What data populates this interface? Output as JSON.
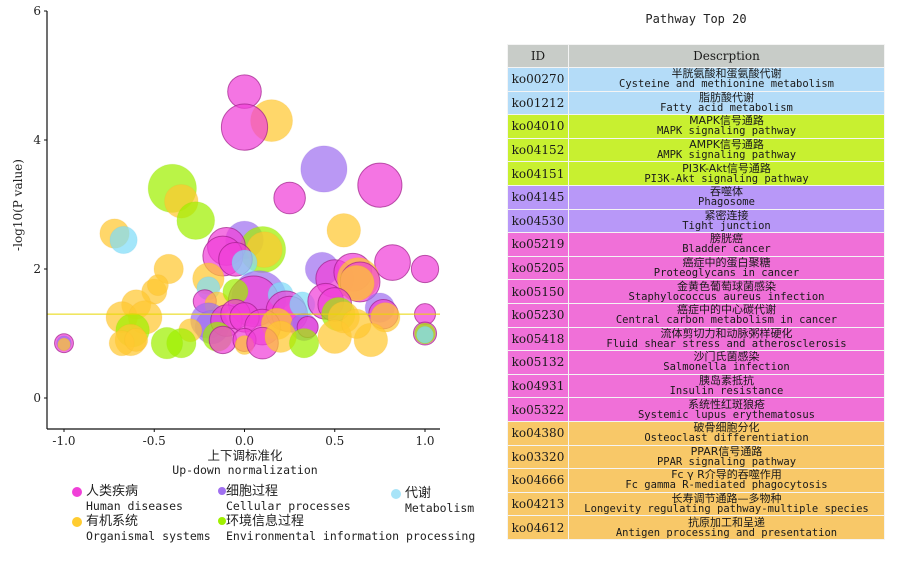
{
  "chart_data": {
    "type": "scatter",
    "subtype": "bubble",
    "xlabel_zh": "上下调标准化",
    "xlabel_en": "Up-down normalization",
    "ylabel": "-log10(P value)",
    "xlim": [
      -1.1,
      1.1
    ],
    "ylim": [
      -0.45,
      6
    ],
    "xticks": [
      "-1.0",
      "-0.5",
      "0.0",
      "0.5",
      "1.0"
    ],
    "xtick_values": [
      -1.0,
      -0.5,
      0.0,
      0.5,
      1.0
    ],
    "yticks": [
      "0",
      "2",
      "4",
      "6"
    ],
    "ytick_values": [
      0,
      2,
      4,
      6
    ],
    "threshold_line": 1.3,
    "grid": false,
    "legend_position": "bottom",
    "categories": [
      {
        "key": "human",
        "zh": "人类疾病",
        "en": "Human diseases",
        "color": "#f040d8"
      },
      {
        "key": "cellular",
        "zh": "细胞过程",
        "en": "Cellular processes",
        "color": "#a070f0"
      },
      {
        "key": "metabolism",
        "zh": "代谢",
        "en": "Metabolism",
        "color": "#80dcf8"
      },
      {
        "key": "organismal",
        "zh": "有机系统",
        "en": "Organismal systems",
        "color": "#ffc830"
      },
      {
        "key": "environmental",
        "zh": "环境信息过程",
        "en": "Environmental information processing",
        "color": "#a0f000"
      }
    ],
    "points": [
      {
        "x": 0.0,
        "y": 4.75,
        "size": 0.8,
        "cat": "human"
      },
      {
        "x": 0.15,
        "y": 4.3,
        "size": 1.0,
        "cat": "organismal"
      },
      {
        "x": 0.0,
        "y": 4.2,
        "size": 1.1,
        "cat": "human"
      },
      {
        "x": 0.44,
        "y": 3.55,
        "size": 1.1,
        "cat": "cellular"
      },
      {
        "x": 0.75,
        "y": 3.3,
        "size": 1.05,
        "cat": "human"
      },
      {
        "x": 0.25,
        "y": 3.1,
        "size": 0.75,
        "cat": "human"
      },
      {
        "x": -0.4,
        "y": 3.25,
        "size": 1.15,
        "cat": "environmental"
      },
      {
        "x": -0.35,
        "y": 3.05,
        "size": 0.8,
        "cat": "organismal"
      },
      {
        "x": -0.27,
        "y": 2.75,
        "size": 0.9,
        "cat": "environmental"
      },
      {
        "x": -0.72,
        "y": 2.55,
        "size": 0.7,
        "cat": "organismal"
      },
      {
        "x": -0.67,
        "y": 2.45,
        "size": 0.65,
        "cat": "metabolism"
      },
      {
        "x": 0.55,
        "y": 2.6,
        "size": 0.8,
        "cat": "organismal"
      },
      {
        "x": 0.0,
        "y": 2.45,
        "size": 0.9,
        "cat": "cellular"
      },
      {
        "x": 0.1,
        "y": 2.3,
        "size": 1.1,
        "cat": "environmental"
      },
      {
        "x": 0.11,
        "y": 2.3,
        "size": 0.85,
        "cat": "organismal"
      },
      {
        "x": -0.1,
        "y": 2.35,
        "size": 0.9,
        "cat": "human"
      },
      {
        "x": -0.12,
        "y": 2.2,
        "size": 0.95,
        "cat": "human"
      },
      {
        "x": -0.05,
        "y": 2.15,
        "size": 0.8,
        "cat": "human"
      },
      {
        "x": 0.0,
        "y": 2.1,
        "size": 0.6,
        "cat": "metabolism"
      },
      {
        "x": 0.43,
        "y": 2.0,
        "size": 0.8,
        "cat": "cellular"
      },
      {
        "x": 0.5,
        "y": 1.85,
        "size": 0.9,
        "cat": "human"
      },
      {
        "x": 0.82,
        "y": 2.1,
        "size": 0.85,
        "cat": "human"
      },
      {
        "x": 1.0,
        "y": 2.0,
        "size": 0.65,
        "cat": "human"
      },
      {
        "x": 0.6,
        "y": 1.95,
        "size": 0.9,
        "cat": "human"
      },
      {
        "x": 0.63,
        "y": 1.85,
        "size": 1.0,
        "cat": "organismal"
      },
      {
        "x": 0.64,
        "y": 1.8,
        "size": 0.95,
        "cat": "human"
      },
      {
        "x": 0.62,
        "y": 1.78,
        "size": 0.85,
        "cat": "organismal"
      },
      {
        "x": -0.42,
        "y": 2.0,
        "size": 0.7,
        "cat": "organismal"
      },
      {
        "x": -0.5,
        "y": 1.65,
        "size": 0.6,
        "cat": "organismal"
      },
      {
        "x": -0.48,
        "y": 1.75,
        "size": 0.5,
        "cat": "organismal"
      },
      {
        "x": -0.6,
        "y": 1.45,
        "size": 0.7,
        "cat": "organismal"
      },
      {
        "x": -0.68,
        "y": 1.25,
        "size": 0.75,
        "cat": "organismal"
      },
      {
        "x": -0.55,
        "y": 1.25,
        "size": 0.8,
        "cat": "organismal"
      },
      {
        "x": -0.2,
        "y": 1.85,
        "size": 0.75,
        "cat": "organismal"
      },
      {
        "x": -0.2,
        "y": 1.7,
        "size": 0.55,
        "cat": "metabolism"
      },
      {
        "x": -0.22,
        "y": 1.5,
        "size": 0.55,
        "cat": "human"
      },
      {
        "x": -0.15,
        "y": 1.45,
        "size": 0.6,
        "cat": "organismal"
      },
      {
        "x": 0.08,
        "y": 1.55,
        "size": 1.3,
        "cat": "cellular"
      },
      {
        "x": 0.05,
        "y": 1.5,
        "size": 1.2,
        "cat": "human"
      },
      {
        "x": 0.2,
        "y": 1.6,
        "size": 0.6,
        "cat": "metabolism"
      },
      {
        "x": -0.05,
        "y": 1.65,
        "size": 0.6,
        "cat": "environmental"
      },
      {
        "x": 0.23,
        "y": 1.35,
        "size": 0.95,
        "cat": "human"
      },
      {
        "x": 0.25,
        "y": 1.3,
        "size": 0.85,
        "cat": "human"
      },
      {
        "x": 0.32,
        "y": 1.45,
        "size": 0.6,
        "cat": "metabolism"
      },
      {
        "x": 0.45,
        "y": 1.5,
        "size": 0.85,
        "cat": "human"
      },
      {
        "x": 0.5,
        "y": 1.45,
        "size": 0.8,
        "cat": "human"
      },
      {
        "x": 0.52,
        "y": 1.3,
        "size": 0.8,
        "cat": "environmental"
      },
      {
        "x": 0.55,
        "y": 1.25,
        "size": 0.75,
        "cat": "organismal"
      },
      {
        "x": 0.75,
        "y": 1.4,
        "size": 0.7,
        "cat": "cellular"
      },
      {
        "x": 0.77,
        "y": 1.3,
        "size": 0.7,
        "cat": "human"
      },
      {
        "x": 0.78,
        "y": 1.25,
        "size": 0.7,
        "cat": "organismal"
      },
      {
        "x": 1.0,
        "y": 1.3,
        "size": 0.5,
        "cat": "human"
      },
      {
        "x": 1.0,
        "y": 1.0,
        "size": 0.55,
        "cat": "human"
      },
      {
        "x": 1.0,
        "y": 1.0,
        "size": 0.5,
        "cat": "environmental"
      },
      {
        "x": 1.0,
        "y": 0.98,
        "size": 0.4,
        "cat": "metabolism"
      },
      {
        "x": -0.2,
        "y": 1.2,
        "size": 0.85,
        "cat": "cellular"
      },
      {
        "x": -0.18,
        "y": 1.1,
        "size": 0.8,
        "cat": "cellular"
      },
      {
        "x": -0.1,
        "y": 1.2,
        "size": 0.75,
        "cat": "human"
      },
      {
        "x": -0.05,
        "y": 1.3,
        "size": 0.7,
        "cat": "human"
      },
      {
        "x": 0.0,
        "y": 1.25,
        "size": 0.7,
        "cat": "human"
      },
      {
        "x": 0.1,
        "y": 1.1,
        "size": 0.85,
        "cat": "human"
      },
      {
        "x": 0.18,
        "y": 1.15,
        "size": 0.75,
        "cat": "organismal"
      },
      {
        "x": 0.33,
        "y": 1.1,
        "size": 0.65,
        "cat": "cellular"
      },
      {
        "x": 0.35,
        "y": 1.1,
        "size": 0.5,
        "cat": "human"
      },
      {
        "x": -0.15,
        "y": 0.95,
        "size": 0.7,
        "cat": "environmental"
      },
      {
        "x": -0.12,
        "y": 0.9,
        "size": 0.65,
        "cat": "human"
      },
      {
        "x": 0.0,
        "y": 0.9,
        "size": 0.55,
        "cat": "human"
      },
      {
        "x": 0.0,
        "y": 0.82,
        "size": 0.45,
        "cat": "organismal"
      },
      {
        "x": 0.1,
        "y": 0.85,
        "size": 0.75,
        "cat": "human"
      },
      {
        "x": 0.2,
        "y": 0.95,
        "size": 0.75,
        "cat": "organismal"
      },
      {
        "x": 0.33,
        "y": 0.85,
        "size": 0.7,
        "cat": "environmental"
      },
      {
        "x": -0.3,
        "y": 1.05,
        "size": 0.55,
        "cat": "organismal"
      },
      {
        "x": -0.35,
        "y": 0.85,
        "size": 0.7,
        "cat": "environmental"
      },
      {
        "x": -0.43,
        "y": 0.85,
        "size": 0.75,
        "cat": "environmental"
      },
      {
        "x": -0.62,
        "y": 1.05,
        "size": 0.8,
        "cat": "environmental"
      },
      {
        "x": -0.63,
        "y": 0.9,
        "size": 0.75,
        "cat": "organismal"
      },
      {
        "x": -0.68,
        "y": 0.85,
        "size": 0.6,
        "cat": "organismal"
      },
      {
        "x": -0.6,
        "y": 0.9,
        "size": 0.55,
        "cat": "organismal"
      },
      {
        "x": 0.5,
        "y": 0.95,
        "size": 0.8,
        "cat": "organismal"
      },
      {
        "x": 0.7,
        "y": 0.9,
        "size": 0.8,
        "cat": "organismal"
      },
      {
        "x": 0.62,
        "y": 1.15,
        "size": 0.7,
        "cat": "organismal"
      },
      {
        "x": -1.0,
        "y": 0.85,
        "size": 0.45,
        "cat": "human"
      },
      {
        "x": -1.0,
        "y": 0.85,
        "size": 0.35,
        "cat": "cellular"
      },
      {
        "x": -1.0,
        "y": 0.83,
        "size": 0.3,
        "cat": "organismal"
      }
    ]
  },
  "table": {
    "title": "Pathway Top 20",
    "headers": {
      "id": "ID",
      "description": "Descrption"
    },
    "rows": [
      {
        "id": "ko00270",
        "zh": "半胱氨酸和蛋氨酸代谢",
        "en": "Cysteine and methionine metabolism",
        "cat": "metabolism"
      },
      {
        "id": "ko01212",
        "zh": "脂肪酸代谢",
        "en": "Fatty acid metabolism",
        "cat": "metabolism"
      },
      {
        "id": "ko04010",
        "zh": "MAPK信号通路",
        "en": "MAPK signaling pathway",
        "cat": "environmental"
      },
      {
        "id": "ko04152",
        "zh": "AMPK信号通路",
        "en": "AMPK signaling pathway",
        "cat": "environmental"
      },
      {
        "id": "ko04151",
        "zh": "PI3K-Akt信号通路",
        "en": "PI3K-Akt signaling pathway",
        "cat": "environmental"
      },
      {
        "id": "ko04145",
        "zh": "吞噬体",
        "en": "Phagosome",
        "cat": "cellular"
      },
      {
        "id": "ko04530",
        "zh": "紧密连接",
        "en": "Tight junction",
        "cat": "cellular"
      },
      {
        "id": "ko05219",
        "zh": "膀胱癌",
        "en": "Bladder cancer",
        "cat": "human"
      },
      {
        "id": "ko05205",
        "zh": "癌症中的蛋白聚糖",
        "en": "Proteoglycans in cancer",
        "cat": "human"
      },
      {
        "id": "ko05150",
        "zh": "金黄色葡萄球菌感染",
        "en": "Staphylococcus aureus infection",
        "cat": "human"
      },
      {
        "id": "ko05230",
        "zh": "癌症中的中心碳代谢",
        "en": "Central carbon metabolism in cancer",
        "cat": "human"
      },
      {
        "id": "ko05418",
        "zh": "流体剪切力和动脉粥样硬化",
        "en": "Fluid shear stress and atherosclerosis",
        "cat": "human"
      },
      {
        "id": "ko05132",
        "zh": "沙门氏菌感染",
        "en": "Salmonella infection",
        "cat": "human"
      },
      {
        "id": "ko04931",
        "zh": "胰岛素抵抗",
        "en": "Insulin resistance",
        "cat": "human"
      },
      {
        "id": "ko05322",
        "zh": "系统性红斑狼疮",
        "en": "Systemic lupus erythematosus",
        "cat": "human"
      },
      {
        "id": "ko04380",
        "zh": "破骨细胞分化",
        "en": "Osteoclast differentiation",
        "cat": "organismal"
      },
      {
        "id": "ko03320",
        "zh": "PPAR信号通路",
        "en": "PPAR signaling pathway",
        "cat": "organismal"
      },
      {
        "id": "ko04666",
        "zh": "Fc γ R介导的吞噬作用",
        "en": "Fc gamma R-mediated phagocytosis",
        "cat": "organismal"
      },
      {
        "id": "ko04213",
        "zh": "长寿调节通路—多物种",
        "en": "Longevity regulating pathway-multiple species",
        "cat": "organismal"
      },
      {
        "id": "ko04612",
        "zh": "抗原加工和呈递",
        "en": "Antigen processing and presentation",
        "cat": "organismal"
      }
    ],
    "row_colors": {
      "metabolism": "#b4dcf8",
      "environmental": "#c8f030",
      "cellular": "#b898f8",
      "human": "#f070d8",
      "organismal": "#f8c868"
    },
    "header_color": "#c8ccc8"
  }
}
